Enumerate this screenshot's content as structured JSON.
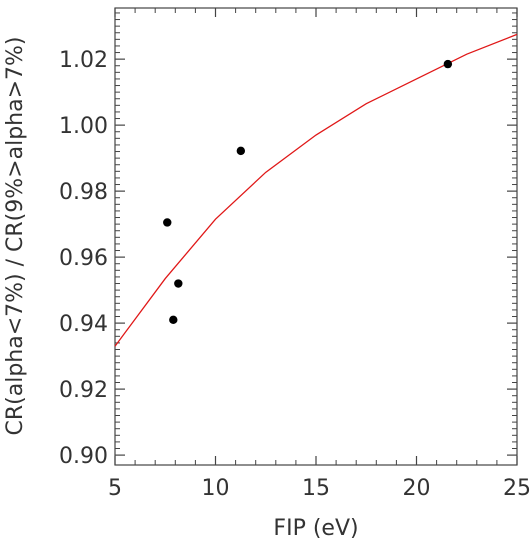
{
  "chart_data": {
    "type": "scatter",
    "xlabel": "FIP (eV)",
    "ylabel": "CR(alpha<7%) / CR(9%>alpha>7%)",
    "xlim": [
      5,
      25
    ],
    "ylim": [
      0.897,
      1.0355
    ],
    "x_ticks": [
      "5",
      "10",
      "15",
      "20",
      "25"
    ],
    "y_ticks": [
      "0.90",
      "0.92",
      "0.94",
      "0.96",
      "0.98",
      "1.00",
      "1.02"
    ],
    "grid": false,
    "series": [
      {
        "kind": "points",
        "color": "#000000",
        "points": [
          {
            "x": 7.6,
            "y": 0.9705
          },
          {
            "x": 7.9,
            "y": 0.941
          },
          {
            "x": 8.15,
            "y": 0.952
          },
          {
            "x": 11.26,
            "y": 0.9922
          },
          {
            "x": 21.56,
            "y": 1.0185
          }
        ]
      },
      {
        "kind": "fit-line",
        "color": "#e01818",
        "points": [
          {
            "x": 5.0,
            "y": 0.933
          },
          {
            "x": 7.5,
            "y": 0.9535
          },
          {
            "x": 10.0,
            "y": 0.9715
          },
          {
            "x": 12.5,
            "y": 0.9857
          },
          {
            "x": 15.0,
            "y": 0.997
          },
          {
            "x": 17.5,
            "y": 1.0065
          },
          {
            "x": 20.0,
            "y": 1.014
          },
          {
            "x": 22.5,
            "y": 1.0215
          },
          {
            "x": 25.0,
            "y": 1.0275
          }
        ]
      }
    ]
  }
}
